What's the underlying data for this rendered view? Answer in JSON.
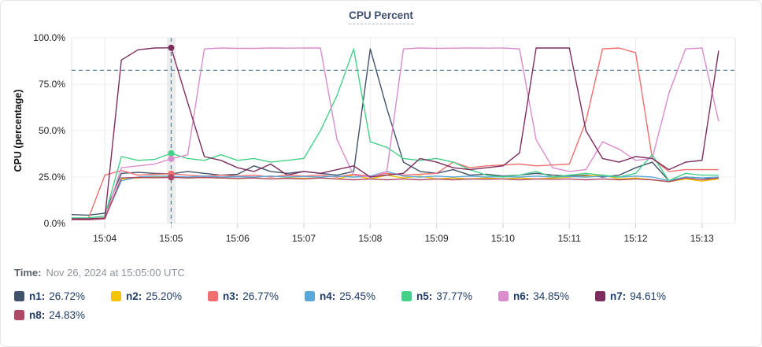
{
  "title": "CPU Percent",
  "time_row": {
    "label": "Time:",
    "value": "Nov 26, 2024 at 15:05:00 UTC"
  },
  "chart_data": {
    "type": "line",
    "title": "CPU Percent",
    "xlabel": "",
    "ylabel": "CPU (percentage)",
    "ylim": [
      0,
      100
    ],
    "grid": true,
    "legend_position": "bottom",
    "threshold_value": 82.5,
    "cursor_time": "15:05:00",
    "x_domain": [
      "15:03:30",
      "15:13:30"
    ],
    "y_ticks": [
      {
        "value": 0,
        "label": "0.0%"
      },
      {
        "value": 25,
        "label": "25.0%"
      },
      {
        "value": 50,
        "label": "50.0%"
      },
      {
        "value": 75,
        "label": "75.0%"
      },
      {
        "value": 100,
        "label": "100.0%"
      }
    ],
    "x_ticks": [
      {
        "time": "15:04:00",
        "label": "15:04"
      },
      {
        "time": "15:05:00",
        "label": "15:05"
      },
      {
        "time": "15:06:00",
        "label": "15:06"
      },
      {
        "time": "15:07:00",
        "label": "15:07"
      },
      {
        "time": "15:08:00",
        "label": "15:08"
      },
      {
        "time": "15:09:00",
        "label": "15:09"
      },
      {
        "time": "15:10:00",
        "label": "15:10"
      },
      {
        "time": "15:11:00",
        "label": "15:11"
      },
      {
        "time": "15:12:00",
        "label": "15:12"
      },
      {
        "time": "15:13:00",
        "label": "15:13"
      }
    ],
    "x": [
      "15:03:30",
      "15:03:45",
      "15:04:00",
      "15:04:15",
      "15:04:30",
      "15:04:45",
      "15:05:00",
      "15:05:15",
      "15:05:30",
      "15:05:45",
      "15:06:00",
      "15:06:15",
      "15:06:30",
      "15:06:45",
      "15:07:00",
      "15:07:15",
      "15:07:30",
      "15:07:45",
      "15:08:00",
      "15:08:15",
      "15:08:30",
      "15:08:45",
      "15:09:00",
      "15:09:15",
      "15:09:30",
      "15:09:45",
      "15:10:00",
      "15:10:15",
      "15:10:30",
      "15:10:45",
      "15:11:00",
      "15:11:15",
      "15:11:30",
      "15:11:45",
      "15:12:00",
      "15:12:15",
      "15:12:30",
      "15:12:45",
      "15:13:00",
      "15:13:15"
    ],
    "series": [
      {
        "name": "n1",
        "label": "n1:",
        "cursor_value": "26.72%",
        "color": "#42526b",
        "values": [
          4.8,
          4.5,
          5.5,
          27,
          27.5,
          27,
          26.72,
          28,
          27,
          26,
          26.5,
          31,
          28,
          27,
          28,
          27,
          26,
          28,
          94,
          62,
          33,
          28,
          27,
          29,
          26,
          26.5,
          25.5,
          26,
          27,
          26,
          25.5,
          26,
          25,
          26,
          30,
          33,
          23,
          25,
          24.5,
          24
        ]
      },
      {
        "name": "n2",
        "label": "n2:",
        "cursor_value": "25.20%",
        "color": "#f5c400",
        "values": [
          2,
          2,
          3,
          24,
          24.5,
          25,
          25.2,
          24.5,
          24.8,
          24.5,
          24.2,
          24.5,
          24,
          24.5,
          24.3,
          24.5,
          24,
          26,
          24,
          26,
          24.5,
          25.5,
          24,
          24.5,
          24,
          24.5,
          24,
          24.5,
          24,
          24.5,
          25,
          25.5,
          26,
          24,
          24.5,
          23.5,
          22.5,
          24,
          22.8,
          24
        ]
      },
      {
        "name": "n3",
        "label": "n3:",
        "cursor_value": "26.77%",
        "color": "#ef6e6e",
        "values": [
          2.5,
          2.5,
          26,
          28.5,
          26,
          26.5,
          26.77,
          26,
          25.5,
          26,
          25.5,
          26,
          25,
          26,
          25.5,
          26,
          25,
          26.5,
          25.5,
          27,
          26,
          26.5,
          27,
          33,
          30,
          31,
          31.5,
          32,
          31,
          31.5,
          32,
          55,
          94,
          94.5,
          92,
          35,
          28,
          29,
          29,
          29
        ]
      },
      {
        "name": "n4",
        "label": "n4:",
        "cursor_value": "25.45%",
        "color": "#5aa8db",
        "values": [
          2.2,
          2.2,
          2.8,
          23,
          25,
          25.5,
          25.45,
          25,
          25.5,
          25,
          25.2,
          25,
          25.5,
          25,
          25.3,
          25,
          25.5,
          25,
          25.5,
          28,
          25.5,
          25,
          25.5,
          25,
          25.5,
          25,
          25.2,
          25,
          25.5,
          25,
          25.3,
          25,
          25.5,
          25,
          25.5,
          25,
          23,
          25,
          24.5,
          25
        ]
      },
      {
        "name": "n5",
        "label": "n5:",
        "cursor_value": "37.77%",
        "color": "#45d089",
        "values": [
          3,
          3,
          4,
          36,
          34,
          34.5,
          37.77,
          35,
          34,
          37,
          34,
          35,
          33,
          34,
          35,
          50,
          69,
          94,
          44,
          41,
          35,
          34,
          35,
          33,
          29,
          26,
          25,
          26,
          28,
          25,
          26,
          27,
          26,
          25,
          27,
          37,
          23,
          27,
          26,
          26
        ]
      },
      {
        "name": "n6",
        "label": "n6:",
        "cursor_value": "34.85%",
        "color": "#da8ccd",
        "values": [
          2,
          2,
          2.5,
          30,
          31,
          32,
          34.85,
          37,
          94,
          94.5,
          94.3,
          94.3,
          94.5,
          94.4,
          94.5,
          94.5,
          45,
          26,
          25,
          28,
          94,
          94.5,
          94.3,
          94.4,
          94.5,
          94.4,
          94.5,
          94,
          45,
          30,
          28,
          29,
          44,
          40,
          34,
          35,
          70,
          94,
          94.5,
          55
        ]
      },
      {
        "name": "n7",
        "label": "n7:",
        "cursor_value": "94.61%",
        "color": "#7c2d5e",
        "values": [
          2.5,
          2.5,
          3,
          88,
          93.5,
          94.5,
          94.61,
          65,
          36,
          34,
          30,
          28,
          32,
          26,
          28,
          27,
          29,
          31,
          25,
          26,
          27,
          35,
          33,
          30,
          29,
          30,
          31,
          38,
          94.5,
          94.5,
          94.5,
          50,
          35,
          33,
          36,
          35,
          29,
          33,
          34,
          93
        ]
      },
      {
        "name": "n8",
        "label": "n8:",
        "cursor_value": "24.83%",
        "color": "#ae4a67",
        "values": [
          2,
          2,
          2.5,
          24.5,
          24.8,
          24.6,
          24.83,
          24.5,
          24.8,
          24.5,
          24.3,
          24.5,
          24,
          24.3,
          24,
          24.5,
          24,
          23.5,
          24,
          23.5,
          24,
          23.5,
          24,
          23.5,
          24,
          23.8,
          24,
          23.5,
          24,
          23.8,
          24,
          23.5,
          24,
          23.5,
          24,
          23.5,
          22.5,
          24.5,
          23.5,
          24.5
        ]
      }
    ]
  }
}
